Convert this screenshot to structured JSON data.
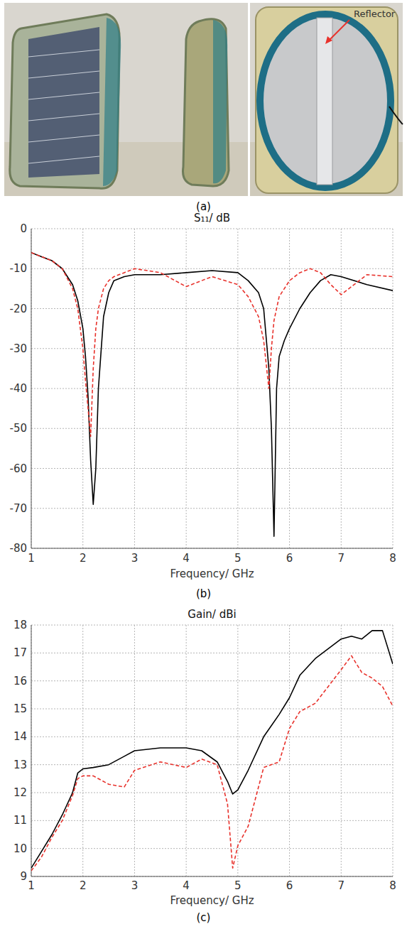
{
  "photo_panel": {
    "panel_label": "(a)",
    "annotation": "Reflector"
  },
  "chart_data": [
    {
      "type": "line",
      "title": "S₁₁/ dB",
      "x_label": "Frequency/ GHz",
      "panel_label": "(b)",
      "x": [
        1,
        1.2,
        1.4,
        1.6,
        1.8,
        1.9,
        2.0,
        2.05,
        2.1,
        2.15,
        2.2,
        2.25,
        2.3,
        2.4,
        2.5,
        2.6,
        2.8,
        3,
        3.5,
        4,
        4.5,
        5,
        5.2,
        5.4,
        5.5,
        5.6,
        5.65,
        5.7,
        5.75,
        5.8,
        5.9,
        6,
        6.2,
        6.4,
        6.6,
        6.8,
        7,
        7.5,
        8
      ],
      "series": [
        {
          "color": "#000000",
          "line_style": "solid",
          "values": [
            -6,
            -7,
            -8,
            -10,
            -14,
            -18,
            -25,
            -32,
            -42,
            -58,
            -69,
            -60,
            -40,
            -22,
            -16,
            -13,
            -12,
            -11.5,
            -11.5,
            -11,
            -10.5,
            -11,
            -13,
            -16,
            -20,
            -35,
            -50,
            -77,
            -40,
            -32,
            -28,
            -25,
            -20,
            -16,
            -13,
            -11.5,
            -12,
            -14,
            -15.5
          ]
        },
        {
          "color": "#e8322c",
          "line_style": "dashed",
          "values": [
            -6,
            -7,
            -8,
            -10,
            -15,
            -20,
            -30,
            -38,
            -45,
            -52,
            -35,
            -25,
            -20,
            -15,
            -13,
            -12,
            -11,
            -10,
            -11,
            -14.5,
            -12,
            -14,
            -17,
            -22,
            -28,
            -40,
            -30,
            -23,
            -20,
            -17,
            -15,
            -13,
            -11,
            -10,
            -11,
            -14,
            -16.5,
            -11.5,
            -12
          ]
        }
      ],
      "xlim": [
        1,
        8
      ],
      "xticks": [
        1,
        2,
        3,
        4,
        5,
        6,
        7,
        8
      ],
      "ylim": [
        -80,
        0
      ],
      "yticks": [
        0,
        -10,
        -20,
        -30,
        -40,
        -50,
        -60,
        -70,
        -80
      ],
      "grid": true
    },
    {
      "type": "line",
      "title": "Gain/ dBi",
      "x_label": "Frequency/ GHz",
      "panel_label": "(c)",
      "x": [
        1,
        1.2,
        1.4,
        1.6,
        1.8,
        1.9,
        2,
        2.2,
        2.5,
        2.8,
        3,
        3.5,
        4,
        4.3,
        4.6,
        4.8,
        4.9,
        5,
        5.2,
        5.5,
        5.8,
        6,
        6.2,
        6.5,
        7,
        7.2,
        7.4,
        7.6,
        7.8,
        8
      ],
      "series": [
        {
          "color": "#000000",
          "line_style": "solid",
          "values": [
            9.3,
            9.9,
            10.5,
            11.2,
            12,
            12.7,
            12.85,
            12.9,
            13.0,
            13.3,
            13.5,
            13.6,
            13.6,
            13.5,
            13.1,
            12.4,
            11.95,
            12.1,
            12.8,
            14.0,
            14.8,
            15.4,
            16.2,
            16.8,
            17.5,
            17.6,
            17.5,
            17.8,
            17.8,
            16.6
          ]
        },
        {
          "color": "#e8322c",
          "line_style": "dashed",
          "values": [
            9.2,
            9.7,
            10.4,
            11.0,
            11.9,
            12.5,
            12.6,
            12.6,
            12.3,
            12.2,
            12.8,
            13.1,
            12.9,
            13.2,
            13.0,
            11.6,
            9.3,
            10.1,
            10.8,
            12.9,
            13.1,
            14.3,
            14.9,
            15.2,
            16.4,
            16.9,
            16.3,
            16.1,
            15.8,
            15.1
          ]
        }
      ],
      "xlim": [
        1,
        8
      ],
      "xticks": [
        1,
        2,
        3,
        4,
        5,
        6,
        7,
        8
      ],
      "ylim": [
        9,
        18
      ],
      "yticks": [
        9,
        10,
        11,
        12,
        13,
        14,
        15,
        16,
        17,
        18
      ],
      "grid": true
    }
  ]
}
